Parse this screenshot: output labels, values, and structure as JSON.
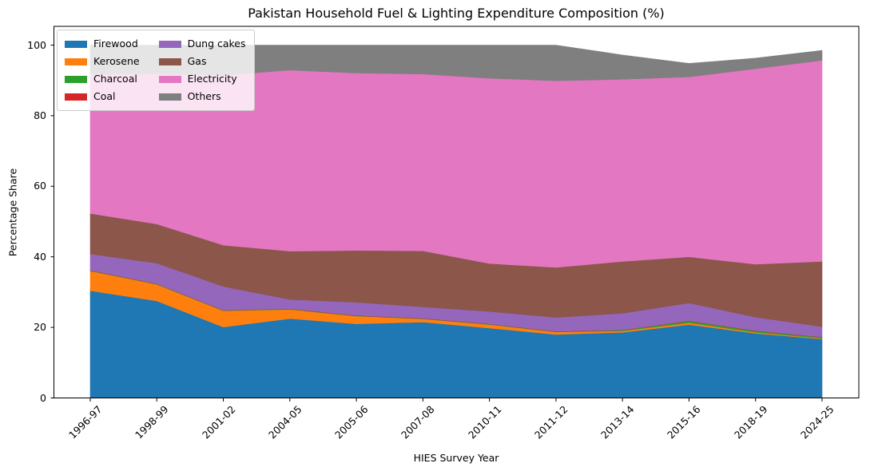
{
  "chart_data": {
    "type": "area",
    "stacked": true,
    "title": "Pakistan Household Fuel & Lighting Expenditure Composition (%)",
    "xlabel": "HIES Survey Year",
    "ylabel": "Percentage Share",
    "grid": false,
    "legend_position": "upper left",
    "legend_columns": 2,
    "x_tick_rotation": 45,
    "ylim": [
      0,
      105
    ],
    "yticks": [
      0,
      20,
      40,
      60,
      80,
      100
    ],
    "categories": [
      "1996-97",
      "1998-99",
      "2001-02",
      "2004-05",
      "2005-06",
      "2007-08",
      "2010-11",
      "2011-12",
      "2013-14",
      "2015-16",
      "2018-19",
      "2024-25"
    ],
    "series": [
      {
        "name": "Firewood",
        "color": "#1f77b4",
        "values": [
          30.4,
          27.5,
          20.1,
          22.5,
          21.0,
          21.5,
          19.8,
          18.0,
          18.6,
          20.8,
          18.3,
          16.7
        ]
      },
      {
        "name": "Kerosene",
        "color": "#ff7f0e",
        "values": [
          5.6,
          4.7,
          4.6,
          2.6,
          2.2,
          0.9,
          1.0,
          0.7,
          0.4,
          0.5,
          0.3,
          0.2
        ]
      },
      {
        "name": "Charcoal",
        "color": "#2ca02c",
        "values": [
          0.1,
          0.1,
          0.1,
          0.1,
          0.1,
          0.1,
          0.1,
          0.1,
          0.2,
          0.5,
          0.4,
          0.3
        ]
      },
      {
        "name": "Coal",
        "color": "#d62728",
        "values": [
          0.1,
          0.1,
          0.1,
          0.1,
          0.1,
          0.1,
          0.1,
          0.1,
          0.1,
          0.1,
          0.1,
          0.1
        ]
      },
      {
        "name": "Dung cakes",
        "color": "#9467bd",
        "values": [
          4.6,
          5.8,
          6.7,
          2.6,
          3.7,
          3.2,
          3.5,
          3.9,
          4.7,
          5.0,
          3.8,
          2.9
        ]
      },
      {
        "name": "Gas",
        "color": "#8c564b",
        "values": [
          11.5,
          11.1,
          11.7,
          13.7,
          14.7,
          15.9,
          13.6,
          14.2,
          14.7,
          13.1,
          15.0,
          18.5
        ]
      },
      {
        "name": "Electricity",
        "color": "#e377c2",
        "values": [
          39.5,
          42.5,
          48.2,
          51.3,
          50.3,
          50.1,
          52.5,
          52.9,
          51.6,
          51.0,
          55.4,
          57.0
        ]
      },
      {
        "name": "Others",
        "color": "#7f7f7f",
        "values": [
          8.2,
          8.2,
          8.5,
          7.1,
          7.9,
          8.2,
          9.4,
          10.1,
          6.9,
          3.8,
          3.0,
          2.8
        ]
      }
    ],
    "stack_totals": [
      100,
      100,
      100,
      100,
      100,
      100,
      100,
      100,
      97.2,
      94.8,
      96.3,
      98.5
    ]
  }
}
